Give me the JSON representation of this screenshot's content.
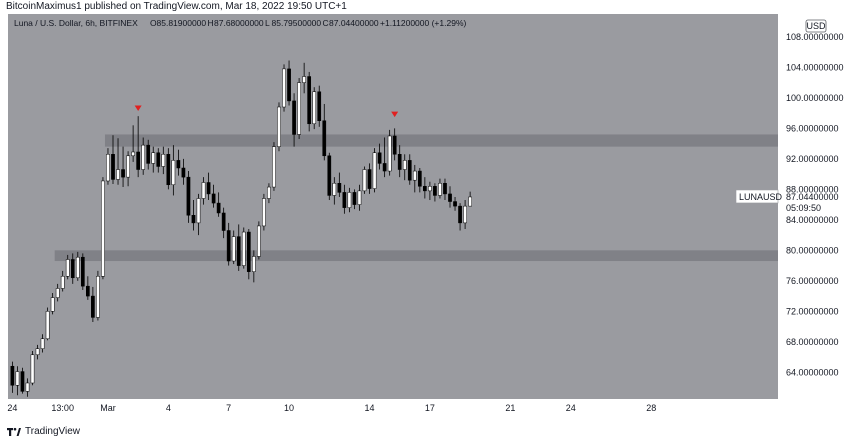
{
  "header": {
    "publisher_line": "BitcoinMaximus1 published on TradingView.com, Mar 18, 2022 19:50 UTC+1"
  },
  "footer": {
    "brand": "TradingView",
    "logo_icon": "tradingview-logo-icon"
  },
  "chart_data": {
    "type": "candlestick",
    "symbol_line": "Luna / U.S. Dollar, 6h, BITFINEX",
    "ohlc": [
      {
        "key": "O",
        "value": "85.81900000"
      },
      {
        "key": "H",
        "value": "87.68000000"
      },
      {
        "key": "L",
        "value": "85.79500000"
      },
      {
        "key": "C",
        "value": "87.04400000"
      },
      {
        "key": "",
        "value": "+1.11200000 (+1.29%)"
      }
    ],
    "currency_badge": "USD",
    "last_price": {
      "symbol": "LUNAUSD",
      "price": "87.04400000",
      "countdown": "05:09:50"
    },
    "ylim": [
      60.5,
      111
    ],
    "price_ticks": [
      "108.00000000",
      "104.00000000",
      "100.00000000",
      "96.00000000",
      "92.00000000",
      "88.00000000",
      "84.00000000",
      "80.00000000",
      "76.00000000",
      "72.00000000",
      "68.00000000",
      "64.00000000"
    ],
    "price_tick_values": [
      108,
      104,
      100,
      96,
      92,
      88,
      84,
      80,
      76,
      72,
      68,
      64
    ],
    "date_ticks": [
      {
        "label": "24",
        "i": 0
      },
      {
        "label": "13:00",
        "i": 10
      },
      {
        "label": "Mar",
        "i": 19
      },
      {
        "label": "4",
        "i": 31
      },
      {
        "label": "7",
        "i": 43
      },
      {
        "label": "10",
        "i": 55
      },
      {
        "label": "14",
        "i": 71
      },
      {
        "label": "17",
        "i": 83
      },
      {
        "label": "21",
        "i": 99
      },
      {
        "label": "24",
        "i": 111
      },
      {
        "label": "28",
        "i": 127
      }
    ],
    "zones": [
      {
        "from": 93.6,
        "to": 95.2,
        "start_i": 19
      },
      {
        "from": 78.6,
        "to": 80.0,
        "start_i": 9
      }
    ],
    "markers": [
      {
        "i": 25,
        "price": 98.6,
        "shape": "down-triangle",
        "color": "#e02020"
      },
      {
        "i": 76,
        "price": 97.8,
        "shape": "down-triangle",
        "color": "#e02020"
      }
    ],
    "colors": {
      "plot_bg": "#9a9ba0",
      "up": "#ffffff",
      "down": "#000000",
      "zone": "#7d7e84",
      "axis_bg": "#ffffff"
    },
    "candles": [
      [
        64.8,
        65.4,
        61.3,
        62.3
      ],
      [
        62.3,
        64.8,
        61.0,
        64.1
      ],
      [
        64.1,
        64.6,
        61.2,
        61.5
      ],
      [
        61.5,
        63.2,
        60.8,
        62.6
      ],
      [
        62.6,
        66.8,
        62.3,
        66.3
      ],
      [
        66.3,
        67.6,
        65.7,
        67.1
      ],
      [
        67.1,
        69.0,
        66.6,
        68.4
      ],
      [
        68.4,
        72.5,
        68.2,
        72.0
      ],
      [
        72.0,
        74.4,
        71.6,
        73.8
      ],
      [
        73.8,
        75.6,
        73.3,
        75.0
      ],
      [
        75.0,
        77.3,
        74.6,
        76.6
      ],
      [
        76.6,
        79.4,
        76.2,
        78.8
      ],
      [
        78.8,
        79.6,
        75.6,
        76.4
      ],
      [
        76.4,
        79.8,
        76.0,
        79.1
      ],
      [
        79.1,
        79.6,
        74.8,
        75.3
      ],
      [
        75.3,
        76.6,
        73.5,
        74.0
      ],
      [
        74.0,
        75.2,
        70.6,
        71.2
      ],
      [
        71.2,
        77.3,
        70.8,
        76.6
      ],
      [
        76.6,
        89.6,
        76.2,
        89.1
      ],
      [
        89.1,
        93.4,
        88.6,
        92.6
      ],
      [
        92.6,
        95.1,
        88.7,
        89.3
      ],
      [
        89.3,
        94.7,
        88.6,
        90.6
      ],
      [
        90.6,
        93.6,
        88.3,
        89.6
      ],
      [
        89.6,
        93.0,
        88.4,
        92.4
      ],
      [
        92.4,
        96.4,
        91.6,
        92.9
      ],
      [
        92.9,
        97.6,
        89.6,
        90.6
      ],
      [
        90.6,
        94.8,
        89.9,
        93.8
      ],
      [
        93.8,
        94.5,
        90.6,
        91.4
      ],
      [
        91.4,
        93.6,
        90.2,
        92.8
      ],
      [
        92.8,
        93.4,
        90.2,
        91.0
      ],
      [
        91.0,
        93.6,
        90.0,
        92.6
      ],
      [
        92.6,
        93.4,
        88.0,
        88.6
      ],
      [
        88.6,
        93.8,
        87.2,
        91.8
      ],
      [
        91.8,
        93.2,
        89.8,
        90.8
      ],
      [
        90.8,
        92.0,
        88.6,
        89.6
      ],
      [
        89.6,
        90.4,
        83.6,
        84.6
      ],
      [
        84.6,
        86.6,
        82.6,
        83.6
      ],
      [
        83.6,
        87.4,
        82.0,
        86.8
      ],
      [
        86.8,
        89.6,
        86.0,
        88.9
      ],
      [
        88.9,
        90.2,
        86.6,
        87.4
      ],
      [
        87.4,
        88.6,
        85.6,
        86.2
      ],
      [
        86.2,
        87.6,
        84.4,
        84.9
      ],
      [
        84.9,
        85.6,
        81.6,
        82.6
      ],
      [
        82.6,
        83.6,
        78.0,
        78.6
      ],
      [
        78.6,
        82.6,
        78.2,
        81.8
      ],
      [
        81.8,
        83.4,
        77.3,
        78.0
      ],
      [
        78.0,
        83.0,
        77.6,
        82.4
      ],
      [
        82.4,
        82.8,
        76.2,
        77.2
      ],
      [
        77.2,
        80.0,
        75.8,
        79.2
      ],
      [
        79.2,
        83.8,
        78.8,
        83.2
      ],
      [
        83.2,
        87.4,
        82.6,
        86.8
      ],
      [
        86.8,
        88.8,
        86.2,
        88.3
      ],
      [
        88.3,
        94.2,
        87.8,
        93.6
      ],
      [
        93.6,
        99.4,
        93.0,
        98.8
      ],
      [
        98.8,
        104.4,
        98.2,
        103.8
      ],
      [
        103.8,
        104.9,
        99.0,
        99.6
      ],
      [
        99.6,
        100.6,
        93.6,
        95.2
      ],
      [
        95.2,
        102.6,
        94.6,
        102.0
      ],
      [
        102.0,
        104.6,
        100.6,
        102.8
      ],
      [
        102.8,
        103.4,
        95.6,
        96.6
      ],
      [
        96.6,
        101.4,
        95.9,
        100.8
      ],
      [
        100.8,
        101.6,
        96.2,
        97.0
      ],
      [
        97.0,
        99.2,
        91.8,
        92.4
      ],
      [
        92.4,
        92.8,
        86.6,
        87.2
      ],
      [
        87.2,
        89.6,
        86.0,
        88.8
      ],
      [
        88.8,
        90.2,
        87.0,
        87.6
      ],
      [
        87.6,
        88.6,
        84.8,
        85.6
      ],
      [
        85.6,
        88.2,
        85.0,
        87.6
      ],
      [
        87.6,
        88.0,
        85.4,
        86.0
      ],
      [
        86.0,
        88.6,
        85.2,
        87.8
      ],
      [
        87.8,
        91.0,
        87.4,
        90.6
      ],
      [
        90.6,
        91.4,
        87.4,
        88.1
      ],
      [
        88.1,
        93.4,
        87.6,
        92.8
      ],
      [
        92.8,
        94.0,
        90.6,
        91.4
      ],
      [
        91.4,
        94.8,
        89.6,
        90.4
      ],
      [
        90.4,
        95.8,
        89.8,
        95.0
      ],
      [
        95.0,
        96.0,
        91.8,
        92.6
      ],
      [
        92.6,
        93.8,
        89.6,
        90.6
      ],
      [
        90.6,
        92.6,
        89.2,
        91.8
      ],
      [
        91.8,
        92.6,
        88.6,
        89.2
      ],
      [
        89.2,
        91.2,
        87.6,
        90.4
      ],
      [
        90.4,
        90.8,
        87.6,
        88.4
      ],
      [
        88.4,
        89.6,
        86.8,
        87.8
      ],
      [
        87.8,
        89.0,
        86.6,
        88.4
      ],
      [
        88.4,
        88.8,
        86.4,
        87.2
      ],
      [
        87.2,
        89.4,
        86.8,
        88.8
      ],
      [
        88.8,
        89.4,
        86.6,
        87.4
      ],
      [
        87.4,
        88.4,
        85.6,
        86.4
      ],
      [
        86.4,
        87.0,
        85.2,
        85.8
      ],
      [
        85.8,
        86.2,
        82.6,
        83.6
      ],
      [
        83.6,
        86.6,
        82.8,
        85.8
      ],
      [
        85.8,
        87.7,
        85.8,
        87.0
      ]
    ]
  }
}
